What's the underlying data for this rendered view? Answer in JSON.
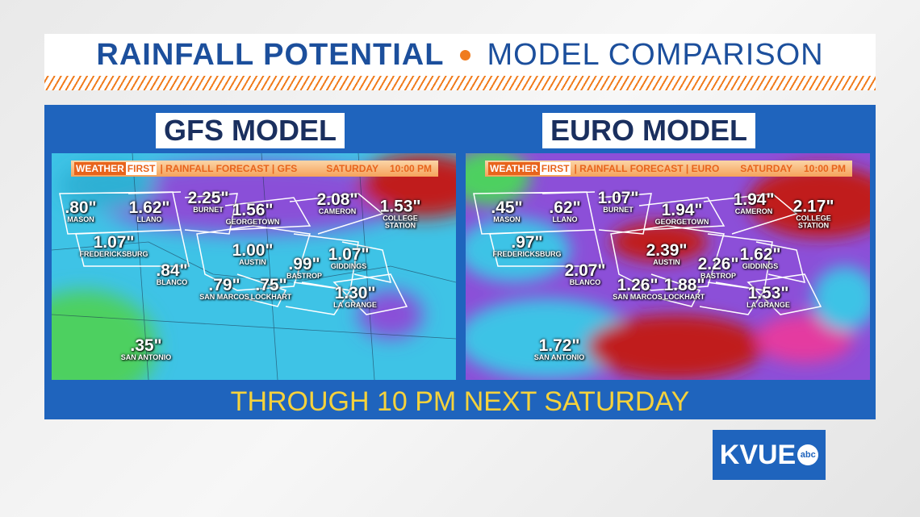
{
  "header": {
    "title_left": "RAINFALL POTENTIAL",
    "title_right": "MODEL COMPARISON"
  },
  "panels": [
    {
      "title": "GFS MODEL",
      "banner": {
        "brand_left": "WEATHER",
        "brand_right": "FIRST",
        "product": "| RAINFALL FORECAST | GFS",
        "day": "SATURDAY",
        "time": "10:00 PM"
      },
      "cities": [
        {
          "name": "MASON",
          "value": ".80\""
        },
        {
          "name": "LLANO",
          "value": "1.62\""
        },
        {
          "name": "BURNET",
          "value": "2.25\""
        },
        {
          "name": "GEORGETOWN",
          "value": "1.56\""
        },
        {
          "name": "CAMERON",
          "value": "2.08\""
        },
        {
          "name": "COLLEGE STATION",
          "value": "1.53\""
        },
        {
          "name": "FREDERICKSBURG",
          "value": "1.07\""
        },
        {
          "name": "AUSTIN",
          "value": "1.00\""
        },
        {
          "name": "BASTROP",
          "value": ".99\""
        },
        {
          "name": "GIDDINGS",
          "value": "1.07\""
        },
        {
          "name": "BLANCO",
          "value": ".84\""
        },
        {
          "name": "SAN MARCOS",
          "value": ".79\""
        },
        {
          "name": "LOCKHART",
          "value": ".75\""
        },
        {
          "name": "LA GRANGE",
          "value": "1.30\""
        },
        {
          "name": "SAN ANTONIO",
          "value": ".35\""
        }
      ]
    },
    {
      "title": "EURO MODEL",
      "banner": {
        "brand_left": "WEATHER",
        "brand_right": "FIRST",
        "product": "| RAINFALL FORECAST | EURO",
        "day": "SATURDAY",
        "time": "10:00 PM"
      },
      "cities": [
        {
          "name": "MASON",
          "value": ".45\""
        },
        {
          "name": "LLANO",
          "value": ".62\""
        },
        {
          "name": "BURNET",
          "value": "1.07\""
        },
        {
          "name": "GEORGETOWN",
          "value": "1.94\""
        },
        {
          "name": "CAMERON",
          "value": "1.94\""
        },
        {
          "name": "COLLEGE STATION",
          "value": "2.17\""
        },
        {
          "name": "FREDERICKSBURG",
          "value": ".97\""
        },
        {
          "name": "AUSTIN",
          "value": "2.39\""
        },
        {
          "name": "BASTROP",
          "value": "2.26\""
        },
        {
          "name": "GIDDINGS",
          "value": "1.62\""
        },
        {
          "name": "BLANCO",
          "value": "2.07\""
        },
        {
          "name": "SAN MARCOS",
          "value": "1.26\""
        },
        {
          "name": "LOCKHART",
          "value": "1.88\""
        },
        {
          "name": "LA GRANGE",
          "value": "1.53\""
        },
        {
          "name": "SAN ANTONIO",
          "value": "1.72\""
        }
      ]
    }
  ],
  "footer": "THROUGH 10 PM NEXT SATURDAY",
  "logo": {
    "text": "KVUE",
    "badge": "abc"
  }
}
